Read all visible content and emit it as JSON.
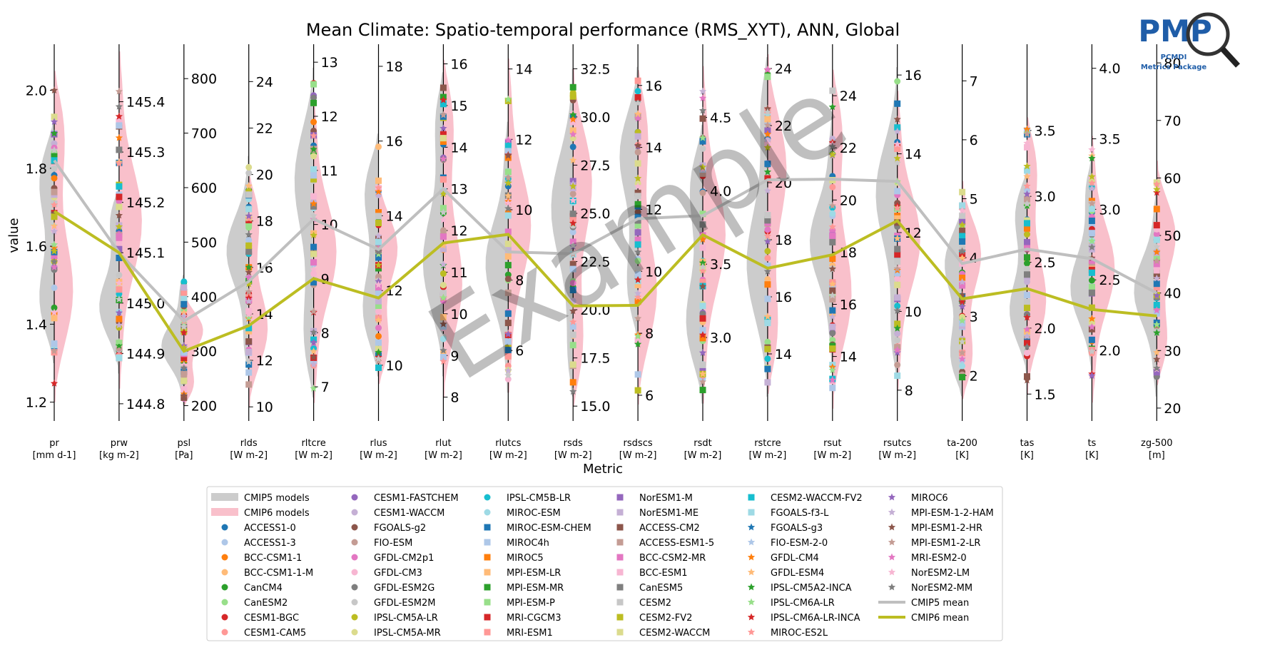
{
  "chart_data": {
    "type": "violin",
    "title": "Mean Climate: Spatio-temporal performance (RMS_XYT), ANN, Global",
    "xlabel": "Metric",
    "ylabel": "value",
    "watermark": "Example",
    "logo": {
      "text": "PMP",
      "sub1": "PCMDI",
      "sub2": "Metrics Package"
    },
    "metrics": [
      {
        "name": "pr",
        "unit": "[mm d-1]",
        "ylim": [
          1.17,
          2.1
        ],
        "ticks": [
          "1.2",
          "1.4",
          "1.6",
          "1.8",
          "2.0"
        ],
        "tickvals": [
          1.2,
          1.4,
          1.6,
          1.8,
          2.0
        ],
        "cmip5_mean": 1.82,
        "cmip6_mean": 1.69,
        "c5": [
          1.3,
          1.93
        ],
        "c6": [
          1.2,
          2.05
        ]
      },
      {
        "name": "prw",
        "unit": "[kg m-2]",
        "ylim": [
          144.78,
          145.5
        ],
        "ticks": [
          "144.8",
          "144.9",
          "145.0",
          "145.1",
          "145.2",
          "145.3",
          "145.4"
        ],
        "tickvals": [
          144.8,
          144.9,
          145.0,
          145.1,
          145.2,
          145.3,
          145.4
        ],
        "cmip5_mean": 145.1,
        "cmip6_mean": 145.1,
        "c5": [
          144.86,
          145.23
        ],
        "c6": [
          144.83,
          145.5
        ]
      },
      {
        "name": "psl",
        "unit": "[Pa]",
        "ylim": [
          185,
          850
        ],
        "ticks": [
          "200",
          "300",
          "400",
          "500",
          "600",
          "700",
          "800"
        ],
        "tickvals": [
          200,
          300,
          400,
          500,
          600,
          700,
          800
        ],
        "cmip5_mean": 355,
        "cmip6_mean": 300,
        "c5": [
          200,
          440
        ],
        "c6": [
          200,
          410
        ]
      },
      {
        "name": "rlds",
        "unit": "[W m-2]",
        "ylim": [
          9.7,
          25.3
        ],
        "ticks": [
          "10",
          "12",
          "14",
          "16",
          "18",
          "20",
          "22",
          "24"
        ],
        "tickvals": [
          10,
          12,
          14,
          16,
          18,
          20,
          22,
          24
        ],
        "cmip5_mean": 15.4,
        "cmip6_mean": 13.5,
        "c5": [
          11.5,
          20.8
        ],
        "c6": [
          10,
          20
        ]
      },
      {
        "name": "rltcre",
        "unit": "[W m-2]",
        "ylim": [
          6.5,
          13.2
        ],
        "ticks": [
          "7",
          "8",
          "9",
          "10",
          "11",
          "12",
          "13"
        ],
        "tickvals": [
          7,
          8,
          9,
          10,
          11,
          12,
          13
        ],
        "cmip5_mean": 10.1,
        "cmip6_mean": 9.0,
        "c5": [
          6.8,
          12.9
        ],
        "c6": [
          6.7,
          12.3
        ]
      },
      {
        "name": "rlus",
        "unit": "[W m-2]",
        "ylim": [
          8.7,
          18.4
        ],
        "ticks": [
          "10",
          "12",
          "14",
          "16",
          "18"
        ],
        "tickvals": [
          10,
          12,
          14,
          16,
          18
        ],
        "cmip5_mean": 13.1,
        "cmip6_mean": 11.8,
        "c5": [
          9.7,
          16.2
        ],
        "c6": [
          9.5,
          15.0
        ]
      },
      {
        "name": "rlut",
        "unit": "[W m-2]",
        "ylim": [
          7.6,
          16.3
        ],
        "ticks": [
          "8",
          "9",
          "10",
          "11",
          "12",
          "13",
          "14",
          "15",
          "16"
        ],
        "tickvals": [
          8,
          9,
          10,
          11,
          12,
          13,
          14,
          15,
          16
        ],
        "cmip5_mean": 13.0,
        "cmip6_mean": 11.7,
        "c5": [
          8.5,
          15.8
        ],
        "c6": [
          8.0,
          16.1
        ]
      },
      {
        "name": "rlutcs",
        "unit": "[W m-2]",
        "ylim": [
          4.2,
          14.5
        ],
        "ticks": [
          "6",
          "8",
          "10",
          "12",
          "14"
        ],
        "tickvals": [
          6,
          8,
          10,
          12,
          14
        ],
        "cmip5_mean": 8.8,
        "cmip6_mean": 9.3,
        "c5": [
          4.8,
          12.5
        ],
        "c6": [
          4.8,
          14.3
        ]
      },
      {
        "name": "rsds",
        "unit": "[W m-2]",
        "ylim": [
          14.6,
          33.4
        ],
        "ticks": [
          "15.0",
          "17.5",
          "20.0",
          "22.5",
          "25.0",
          "27.5",
          "30.0",
          "32.5"
        ],
        "tickvals": [
          15,
          17.5,
          20,
          22.5,
          25,
          27.5,
          30,
          32.5
        ],
        "cmip5_mean": 22.9,
        "cmip6_mean": 20.2,
        "c5": [
          15.5,
          32.5
        ],
        "c6": [
          15.0,
          32.5
        ]
      },
      {
        "name": "rsdscs",
        "unit": "[W m-2]",
        "ylim": [
          5.4,
          17.1
        ],
        "ticks": [
          "6",
          "8",
          "10",
          "12",
          "14",
          "16"
        ],
        "tickvals": [
          6,
          8,
          10,
          12,
          14,
          16
        ],
        "cmip5_mean": 11.7,
        "cmip6_mean": 8.9,
        "c5": [
          7.8,
          16.6
        ],
        "c6": [
          5.7,
          16.5
        ]
      },
      {
        "name": "rsdt",
        "unit": "[W m-2]",
        "ylim": [
          2.48,
          4.95
        ],
        "ticks": [
          "3.0",
          "3.5",
          "4.0",
          "4.5"
        ],
        "tickvals": [
          3,
          3.5,
          4,
          4.5
        ],
        "cmip5_mean": 3.83,
        "cmip6_mean": 3.7,
        "c5": [
          2.55,
          4.45
        ],
        "c6": [
          2.55,
          4.85
        ]
      },
      {
        "name": "rstcre",
        "unit": "[W m-2]",
        "ylim": [
          11.9,
          24.6
        ],
        "ticks": [
          "14",
          "16",
          "18",
          "20",
          "22",
          "24"
        ],
        "tickvals": [
          14,
          16,
          18,
          20,
          22,
          24
        ],
        "cmip5_mean": 20.1,
        "cmip6_mean": 17.0,
        "c5": [
          12.5,
          24.4
        ],
        "c6": [
          12.6,
          24.5
        ]
      },
      {
        "name": "rsut",
        "unit": "[W m-2]",
        "ylim": [
          11.8,
          25.7
        ],
        "ticks": [
          "14",
          "16",
          "18",
          "20",
          "22",
          "24"
        ],
        "tickvals": [
          14,
          16,
          18,
          20,
          22,
          24
        ],
        "cmip5_mean": 20.8,
        "cmip6_mean": 17.9,
        "c5": [
          13.7,
          23.2
        ],
        "c6": [
          12.0,
          25.0
        ]
      },
      {
        "name": "rsutcs",
        "unit": "[W m-2]",
        "ylim": [
          7.4,
          16.6
        ],
        "ticks": [
          "8",
          "10",
          "12",
          "14",
          "16"
        ],
        "tickvals": [
          8,
          10,
          12,
          14,
          16
        ],
        "cmip5_mean": 13.3,
        "cmip6_mean": 12.3,
        "c5": [
          8.3,
          16.2
        ],
        "c6": [
          8.0,
          15.6
        ]
      },
      {
        "name": "ta-200",
        "unit": "[K]",
        "ylim": [
          1.35,
          7.5
        ],
        "ticks": [
          "2",
          "3",
          "4",
          "5",
          "6",
          "7"
        ],
        "tickvals": [
          2,
          3,
          4,
          5,
          6,
          7
        ],
        "cmip5_mean": 3.9,
        "cmip6_mean": 3.3,
        "c5": [
          1.65,
          4.9
        ],
        "c6": [
          1.6,
          5.3
        ]
      },
      {
        "name": "tas",
        "unit": "[K]",
        "ylim": [
          1.35,
          4.1
        ],
        "ticks": [
          "1.5",
          "2.0",
          "2.5",
          "3.0",
          "3.5"
        ],
        "tickvals": [
          1.5,
          2.0,
          2.5,
          3.0,
          3.5
        ],
        "cmip5_mean": 2.6,
        "cmip6_mean": 2.3,
        "c5": [
          1.65,
          3.2
        ],
        "c6": [
          1.5,
          3.6
        ]
      },
      {
        "name": "ts",
        "unit": "[K]",
        "ylim": [
          1.55,
          4.12
        ],
        "ticks": [
          "2.0",
          "2.5",
          "3.0",
          "3.5",
          "4.0"
        ],
        "tickvals": [
          2.0,
          2.5,
          3.0,
          3.5,
          4.0
        ],
        "cmip5_mean": 2.65,
        "cmip6_mean": 2.29,
        "c5": [
          1.82,
          3.35
        ],
        "c6": [
          1.63,
          3.52
        ]
      },
      {
        "name": "zg-500",
        "unit": "[m]",
        "ylim": [
          19,
          82
        ],
        "ticks": [
          "20",
          "30",
          "40",
          "50",
          "60",
          "70",
          "80"
        ],
        "tickvals": [
          20,
          30,
          40,
          50,
          60,
          70,
          80
        ],
        "cmip5_mean": 40,
        "cmip6_mean": 36,
        "c5": [
          22,
          58
        ],
        "c6": [
          24,
          63
        ]
      }
    ],
    "legend": {
      "columns": [
        [
          {
            "label": "CMIP5 models",
            "kind": "patch",
            "color": "#cccccc"
          },
          {
            "label": "CMIP6 models",
            "kind": "patch",
            "color": "#f9c0cb"
          },
          {
            "label": "ACCESS1-0",
            "kind": "o",
            "color": "#1f77b4"
          },
          {
            "label": "ACCESS1-3",
            "kind": "o",
            "color": "#aec7e8"
          },
          {
            "label": "BCC-CSM1-1",
            "kind": "o",
            "color": "#ff7f0e"
          },
          {
            "label": "BCC-CSM1-1-M",
            "kind": "o",
            "color": "#ffbb78"
          },
          {
            "label": "CanCM4",
            "kind": "o",
            "color": "#2ca02c"
          },
          {
            "label": "CanESM2",
            "kind": "o",
            "color": "#98df8a"
          },
          {
            "label": "CESM1-BGC",
            "kind": "o",
            "color": "#d62728"
          },
          {
            "label": "CESM1-CAM5",
            "kind": "o",
            "color": "#ff9896"
          }
        ],
        [
          {
            "label": "CESM1-FASTCHEM",
            "kind": "o",
            "color": "#9467bd"
          },
          {
            "label": "CESM1-WACCM",
            "kind": "o",
            "color": "#c5b0d5"
          },
          {
            "label": "FGOALS-g2",
            "kind": "o",
            "color": "#8c564b"
          },
          {
            "label": "FIO-ESM",
            "kind": "o",
            "color": "#c49c94"
          },
          {
            "label": "GFDL-CM2p1",
            "kind": "o",
            "color": "#e377c2"
          },
          {
            "label": "GFDL-CM3",
            "kind": "o",
            "color": "#f7b6d2"
          },
          {
            "label": "GFDL-ESM2G",
            "kind": "o",
            "color": "#7f7f7f"
          },
          {
            "label": "GFDL-ESM2M",
            "kind": "o",
            "color": "#c7c7c7"
          },
          {
            "label": "IPSL-CM5A-LR",
            "kind": "o",
            "color": "#bcbd22"
          },
          {
            "label": "IPSL-CM5A-MR",
            "kind": "o",
            "color": "#dbdb8d"
          }
        ],
        [
          {
            "label": "IPSL-CM5B-LR",
            "kind": "o",
            "color": "#17becf"
          },
          {
            "label": "MIROC-ESM",
            "kind": "o",
            "color": "#9edae5"
          },
          {
            "label": "MIROC-ESM-CHEM",
            "kind": "s",
            "color": "#1f77b4"
          },
          {
            "label": "MIROC4h",
            "kind": "s",
            "color": "#aec7e8"
          },
          {
            "label": "MIROC5",
            "kind": "s",
            "color": "#ff7f0e"
          },
          {
            "label": "MPI-ESM-LR",
            "kind": "s",
            "color": "#ffbb78"
          },
          {
            "label": "MPI-ESM-MR",
            "kind": "s",
            "color": "#2ca02c"
          },
          {
            "label": "MPI-ESM-P",
            "kind": "s",
            "color": "#98df8a"
          },
          {
            "label": "MRI-CGCM3",
            "kind": "s",
            "color": "#d62728"
          },
          {
            "label": "MRI-ESM1",
            "kind": "s",
            "color": "#ff9896"
          }
        ],
        [
          {
            "label": "NorESM1-M",
            "kind": "s",
            "color": "#9467bd"
          },
          {
            "label": "NorESM1-ME",
            "kind": "s",
            "color": "#c5b0d5"
          },
          {
            "label": "ACCESS-CM2",
            "kind": "s",
            "color": "#8c564b"
          },
          {
            "label": "ACCESS-ESM1-5",
            "kind": "s",
            "color": "#c49c94"
          },
          {
            "label": "BCC-CSM2-MR",
            "kind": "s",
            "color": "#e377c2"
          },
          {
            "label": "BCC-ESM1",
            "kind": "s",
            "color": "#f7b6d2"
          },
          {
            "label": "CanESM5",
            "kind": "s",
            "color": "#7f7f7f"
          },
          {
            "label": "CESM2",
            "kind": "s",
            "color": "#c7c7c7"
          },
          {
            "label": "CESM2-FV2",
            "kind": "s",
            "color": "#bcbd22"
          },
          {
            "label": "CESM2-WACCM",
            "kind": "s",
            "color": "#dbdb8d"
          }
        ],
        [
          {
            "label": "CESM2-WACCM-FV2",
            "kind": "s",
            "color": "#17becf"
          },
          {
            "label": "FGOALS-f3-L",
            "kind": "s",
            "color": "#9edae5"
          },
          {
            "label": "FGOALS-g3",
            "kind": "*",
            "color": "#1f77b4"
          },
          {
            "label": "FIO-ESM-2-0",
            "kind": "*",
            "color": "#aec7e8"
          },
          {
            "label": "GFDL-CM4",
            "kind": "*",
            "color": "#ff7f0e"
          },
          {
            "label": "GFDL-ESM4",
            "kind": "*",
            "color": "#ffbb78"
          },
          {
            "label": "IPSL-CM5A2-INCA",
            "kind": "*",
            "color": "#2ca02c"
          },
          {
            "label": "IPSL-CM6A-LR",
            "kind": "*",
            "color": "#98df8a"
          },
          {
            "label": "IPSL-CM6A-LR-INCA",
            "kind": "*",
            "color": "#d62728"
          },
          {
            "label": "MIROC-ES2L",
            "kind": "*",
            "color": "#ff9896"
          }
        ],
        [
          {
            "label": "MIROC6",
            "kind": "*",
            "color": "#9467bd"
          },
          {
            "label": "MPI-ESM-1-2-HAM",
            "kind": "*",
            "color": "#c5b0d5"
          },
          {
            "label": "MPI-ESM1-2-HR",
            "kind": "*",
            "color": "#8c564b"
          },
          {
            "label": "MPI-ESM1-2-LR",
            "kind": "*",
            "color": "#c49c94"
          },
          {
            "label": "MRI-ESM2-0",
            "kind": "*",
            "color": "#e377c2"
          },
          {
            "label": "NorESM2-LM",
            "kind": "*",
            "color": "#f7b6d2"
          },
          {
            "label": "NorESM2-MM",
            "kind": "*",
            "color": "#7f7f7f"
          },
          {
            "label": "CMIP5 mean",
            "kind": "line",
            "color": "#bfbfbf"
          },
          {
            "label": "CMIP6 mean",
            "kind": "line",
            "color": "#bcbd22"
          }
        ]
      ]
    },
    "colors": {
      "cmip5_violin": "#cccccc",
      "cmip6_violin": "#f9c0cb",
      "cmip5_mean": "#bfbfbf",
      "cmip6_mean": "#bcbd22",
      "logo": "#1f5da8"
    }
  }
}
